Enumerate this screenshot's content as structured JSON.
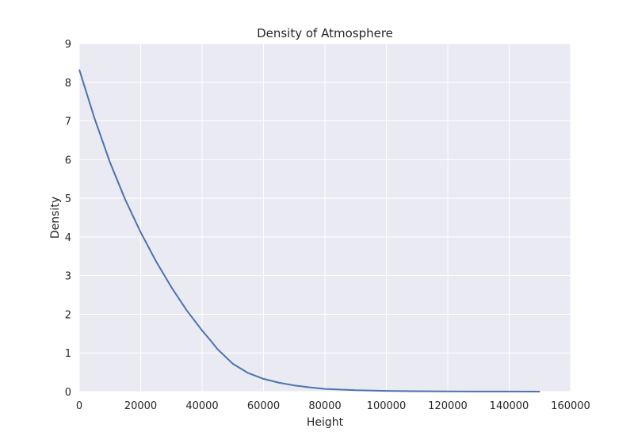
{
  "chart_data": {
    "type": "line",
    "title": "Density of Atmosphere",
    "xlabel": "Height",
    "ylabel": "Density",
    "xlim": [
      0,
      160000
    ],
    "ylim": [
      0,
      9
    ],
    "grid": true,
    "xticks": [
      "0",
      "20000",
      "40000",
      "60000",
      "80000",
      "100000",
      "120000",
      "140000",
      "160000"
    ],
    "yticks": [
      "0",
      "1",
      "2",
      "3",
      "4",
      "5",
      "6",
      "7",
      "8",
      "9"
    ],
    "colors": {
      "background": "#eaeaf2",
      "grid": "#ffffff",
      "line": "#4c72b0",
      "text": "#262626"
    },
    "series": [
      {
        "x": [
          0,
          5000,
          10000,
          15000,
          20000,
          25000,
          30000,
          35000,
          40000,
          43000,
          45000,
          50000,
          55000,
          60000,
          65000,
          70000,
          75000,
          80000,
          90000,
          100000,
          110000,
          120000,
          130000,
          140000,
          150000
        ],
        "values": [
          8.33,
          7.06,
          5.93,
          4.96,
          4.12,
          3.37,
          2.7,
          2.1,
          1.58,
          1.3,
          1.1,
          0.72,
          0.48,
          0.33,
          0.23,
          0.16,
          0.11,
          0.07,
          0.035,
          0.018,
          0.009,
          0.005,
          0.003,
          0.002,
          0.001
        ]
      }
    ]
  }
}
